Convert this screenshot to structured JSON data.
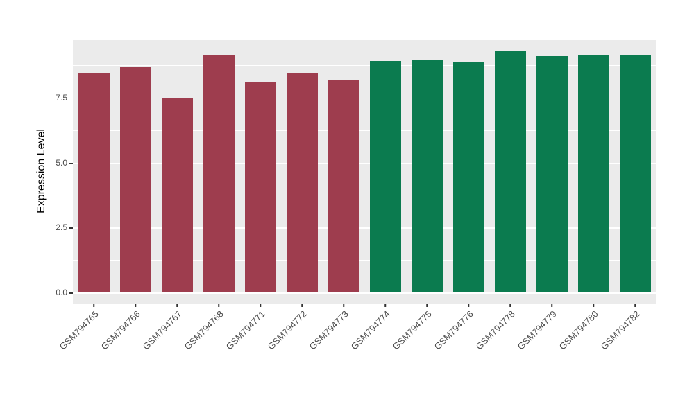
{
  "chart_data": {
    "type": "bar",
    "title": "",
    "xlabel": "",
    "ylabel": "Expression Level",
    "categories": [
      "GSM794765",
      "GSM794766",
      "GSM794767",
      "GSM794768",
      "GSM794771",
      "GSM794772",
      "GSM794773",
      "GSM794774",
      "GSM794775",
      "GSM794776",
      "GSM794778",
      "GSM794779",
      "GSM794780",
      "GSM794782"
    ],
    "values": [
      8.45,
      8.7,
      7.5,
      9.15,
      8.1,
      8.45,
      8.15,
      8.9,
      8.95,
      8.85,
      9.3,
      9.1,
      9.15,
      9.15
    ],
    "groups": [
      "group1",
      "group1",
      "group1",
      "group1",
      "group1",
      "group1",
      "group1",
      "group2",
      "group2",
      "group2",
      "group2",
      "group2",
      "group2",
      "group2"
    ],
    "group_colors": {
      "group1": "#9E3D4E",
      "group2": "#0B7B4F"
    },
    "yticks": [
      0,
      2.5,
      5,
      7.5
    ],
    "ytick_labels": [
      "0.0",
      "2.5",
      "5.0",
      "7.5"
    ],
    "minor_ticks": [
      1.25,
      3.75,
      6.25,
      8.75
    ],
    "ylim": [
      0,
      9.8
    ],
    "grid": true,
    "legend": "none",
    "panel_background": "#EBEBEB",
    "gridline_color": "#FFFFFF"
  }
}
